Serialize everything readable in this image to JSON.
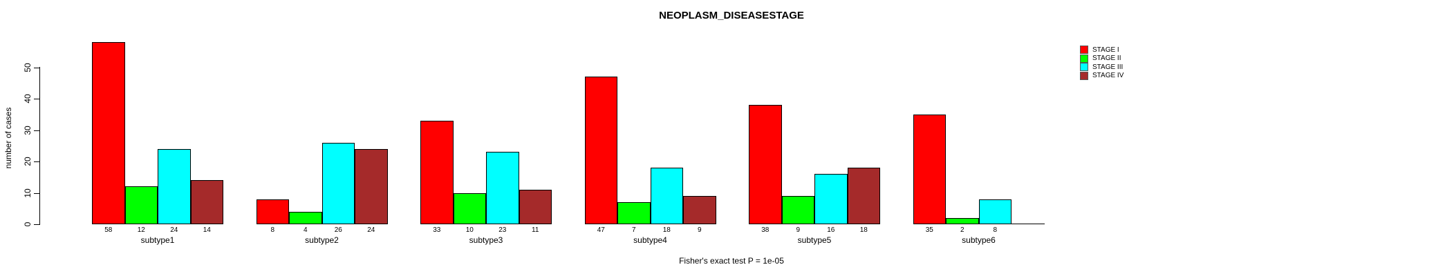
{
  "chart_data": {
    "type": "bar",
    "title": "NEOPLASM_DISEASESTAGE",
    "ylabel": "number of cases",
    "xlabel": "",
    "caption": "Fisher's exact test P = 1e-05",
    "categories": [
      "subtype1",
      "subtype2",
      "subtype3",
      "subtype4",
      "subtype5",
      "subtype6"
    ],
    "series": [
      {
        "name": "STAGE I",
        "color": "#ff0000",
        "values": [
          58,
          8,
          33,
          47,
          38,
          35
        ]
      },
      {
        "name": "STAGE II",
        "color": "#00ff00",
        "values": [
          12,
          4,
          10,
          7,
          9,
          2
        ]
      },
      {
        "name": "STAGE III",
        "color": "#00ffff",
        "values": [
          24,
          26,
          23,
          18,
          16,
          8
        ]
      },
      {
        "name": "STAGE IV",
        "color": "#a52a2a",
        "values": [
          14,
          24,
          11,
          9,
          18,
          0
        ]
      }
    ],
    "yticks": [
      0,
      10,
      20,
      30,
      40,
      50
    ],
    "ylim": [
      0,
      58
    ],
    "bar_value_labels": true,
    "zero_value_labels_hidden": true,
    "grid": false,
    "legend_position": "right",
    "axis_color": "#000000",
    "bar_border_color": "#000000",
    "background_color": "#ffffff"
  }
}
